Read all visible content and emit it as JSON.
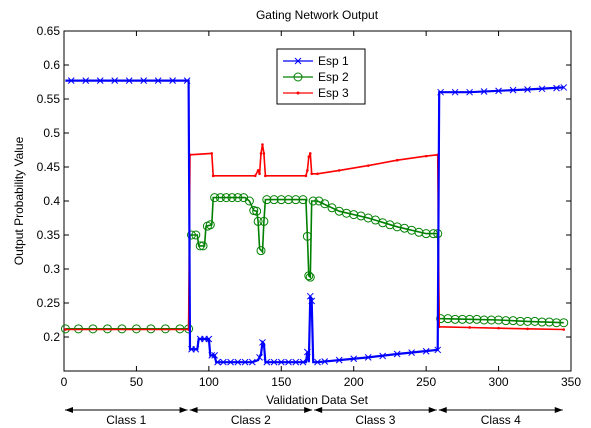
{
  "chart_data": {
    "type": "line",
    "title": "Gating Network Output",
    "xlabel": "Validation Data Set",
    "ylabel": "Output Probability Value",
    "xlim": [
      0,
      350
    ],
    "ylim": [
      0.15,
      0.65
    ],
    "xticks": [
      0,
      50,
      100,
      150,
      200,
      250,
      300,
      350
    ],
    "yticks": [
      0.2,
      0.25,
      0.3,
      0.35,
      0.4,
      0.45,
      0.5,
      0.55,
      0.6,
      0.65
    ],
    "ytick_labels": [
      "0.2",
      "0.25",
      "0.3",
      "0.35",
      "0.4",
      "0.45",
      "0.5",
      "0.55",
      "0.6",
      "0.65"
    ],
    "grid": false,
    "legend_position": "top-center",
    "series": [
      {
        "name": "Esp 1",
        "color": "#0000ff",
        "marker": "x",
        "points": [
          [
            1,
            0.577
          ],
          [
            86,
            0.577
          ],
          [
            87,
            0.182
          ],
          [
            92,
            0.182
          ],
          [
            93,
            0.197
          ],
          [
            100,
            0.197
          ],
          [
            101,
            0.173
          ],
          [
            104,
            0.173
          ],
          [
            105,
            0.163
          ],
          [
            130,
            0.163
          ],
          [
            134,
            0.166
          ],
          [
            136,
            0.175
          ],
          [
            137,
            0.192
          ],
          [
            138,
            0.19
          ],
          [
            139,
            0.163
          ],
          [
            167,
            0.163
          ],
          [
            168,
            0.178
          ],
          [
            169,
            0.163
          ],
          [
            170,
            0.26
          ],
          [
            171,
            0.253
          ],
          [
            172,
            0.163
          ],
          [
            175,
            0.163
          ],
          [
            190,
            0.166
          ],
          [
            210,
            0.17
          ],
          [
            230,
            0.175
          ],
          [
            258,
            0.181
          ],
          [
            259,
            0.56
          ],
          [
            280,
            0.56
          ],
          [
            300,
            0.562
          ],
          [
            320,
            0.564
          ],
          [
            345,
            0.567
          ]
        ],
        "marker_points": [
          [
            5,
            0.577
          ],
          [
            15,
            0.577
          ],
          [
            25,
            0.577
          ],
          [
            35,
            0.577
          ],
          [
            45,
            0.577
          ],
          [
            55,
            0.577
          ],
          [
            65,
            0.577
          ],
          [
            75,
            0.577
          ],
          [
            85,
            0.577
          ],
          [
            88,
            0.182
          ],
          [
            91,
            0.182
          ],
          [
            94,
            0.197
          ],
          [
            97,
            0.197
          ],
          [
            100,
            0.197
          ],
          [
            102,
            0.173
          ],
          [
            104,
            0.173
          ],
          [
            106,
            0.163
          ],
          [
            110,
            0.163
          ],
          [
            115,
            0.163
          ],
          [
            120,
            0.163
          ],
          [
            125,
            0.163
          ],
          [
            130,
            0.163
          ],
          [
            135,
            0.17
          ],
          [
            137,
            0.192
          ],
          [
            140,
            0.163
          ],
          [
            145,
            0.163
          ],
          [
            150,
            0.163
          ],
          [
            155,
            0.163
          ],
          [
            160,
            0.163
          ],
          [
            165,
            0.163
          ],
          [
            168,
            0.178
          ],
          [
            170,
            0.26
          ],
          [
            171,
            0.253
          ],
          [
            175,
            0.163
          ],
          [
            180,
            0.164
          ],
          [
            190,
            0.166
          ],
          [
            200,
            0.168
          ],
          [
            210,
            0.17
          ],
          [
            220,
            0.172
          ],
          [
            230,
            0.175
          ],
          [
            240,
            0.177
          ],
          [
            250,
            0.179
          ],
          [
            258,
            0.181
          ],
          [
            260,
            0.56
          ],
          [
            270,
            0.56
          ],
          [
            280,
            0.56
          ],
          [
            290,
            0.561
          ],
          [
            300,
            0.562
          ],
          [
            310,
            0.563
          ],
          [
            320,
            0.564
          ],
          [
            330,
            0.565
          ],
          [
            340,
            0.566
          ],
          [
            345,
            0.567
          ]
        ]
      },
      {
        "name": "Esp 2",
        "color": "#008000",
        "marker": "o",
        "points": [
          [
            1,
            0.212
          ],
          [
            86,
            0.212
          ],
          [
            87,
            0.35
          ],
          [
            92,
            0.35
          ],
          [
            93,
            0.334
          ],
          [
            97,
            0.334
          ],
          [
            98,
            0.363
          ],
          [
            102,
            0.365
          ],
          [
            103,
            0.405
          ],
          [
            125,
            0.405
          ],
          [
            128,
            0.4
          ],
          [
            131,
            0.386
          ],
          [
            133,
            0.385
          ],
          [
            134,
            0.37
          ],
          [
            135,
            0.33
          ],
          [
            137,
            0.325
          ],
          [
            138,
            0.37
          ],
          [
            139,
            0.402
          ],
          [
            167,
            0.402
          ],
          [
            168,
            0.348
          ],
          [
            169,
            0.29
          ],
          [
            170,
            0.288
          ],
          [
            171,
            0.4
          ],
          [
            175,
            0.4
          ],
          [
            190,
            0.385
          ],
          [
            210,
            0.375
          ],
          [
            230,
            0.362
          ],
          [
            250,
            0.352
          ],
          [
            258,
            0.352
          ],
          [
            259,
            0.227
          ],
          [
            280,
            0.226
          ],
          [
            300,
            0.225
          ],
          [
            320,
            0.223
          ],
          [
            345,
            0.221
          ]
        ],
        "marker_points": [
          [
            1,
            0.212
          ],
          [
            10,
            0.212
          ],
          [
            20,
            0.212
          ],
          [
            30,
            0.212
          ],
          [
            40,
            0.212
          ],
          [
            50,
            0.212
          ],
          [
            60,
            0.212
          ],
          [
            70,
            0.212
          ],
          [
            80,
            0.212
          ],
          [
            86,
            0.212
          ],
          [
            88,
            0.35
          ],
          [
            91,
            0.35
          ],
          [
            94,
            0.334
          ],
          [
            96,
            0.334
          ],
          [
            99,
            0.363
          ],
          [
            101,
            0.365
          ],
          [
            104,
            0.405
          ],
          [
            108,
            0.405
          ],
          [
            112,
            0.405
          ],
          [
            116,
            0.405
          ],
          [
            120,
            0.405
          ],
          [
            124,
            0.405
          ],
          [
            128,
            0.4
          ],
          [
            131,
            0.386
          ],
          [
            133,
            0.385
          ],
          [
            134,
            0.37
          ],
          [
            136,
            0.327
          ],
          [
            138,
            0.37
          ],
          [
            140,
            0.402
          ],
          [
            145,
            0.402
          ],
          [
            150,
            0.402
          ],
          [
            155,
            0.402
          ],
          [
            160,
            0.402
          ],
          [
            165,
            0.402
          ],
          [
            168,
            0.348
          ],
          [
            169,
            0.29
          ],
          [
            170,
            0.288
          ],
          [
            172,
            0.4
          ],
          [
            176,
            0.4
          ],
          [
            180,
            0.396
          ],
          [
            185,
            0.39
          ],
          [
            190,
            0.385
          ],
          [
            195,
            0.382
          ],
          [
            200,
            0.38
          ],
          [
            205,
            0.378
          ],
          [
            210,
            0.375
          ],
          [
            215,
            0.372
          ],
          [
            220,
            0.368
          ],
          [
            225,
            0.365
          ],
          [
            230,
            0.362
          ],
          [
            235,
            0.36
          ],
          [
            240,
            0.357
          ],
          [
            245,
            0.354
          ],
          [
            250,
            0.352
          ],
          [
            255,
            0.352
          ],
          [
            258,
            0.352
          ],
          [
            260,
            0.227
          ],
          [
            265,
            0.227
          ],
          [
            270,
            0.226
          ],
          [
            275,
            0.226
          ],
          [
            280,
            0.226
          ],
          [
            285,
            0.226
          ],
          [
            290,
            0.225
          ],
          [
            295,
            0.225
          ],
          [
            300,
            0.225
          ],
          [
            305,
            0.224
          ],
          [
            310,
            0.224
          ],
          [
            315,
            0.223
          ],
          [
            320,
            0.223
          ],
          [
            325,
            0.223
          ],
          [
            330,
            0.222
          ],
          [
            335,
            0.222
          ],
          [
            340,
            0.221
          ],
          [
            345,
            0.221
          ]
        ]
      },
      {
        "name": "Esp 3",
        "color": "#ff0000",
        "marker": ".",
        "points": [
          [
            1,
            0.211
          ],
          [
            86,
            0.211
          ],
          [
            87,
            0.468
          ],
          [
            102,
            0.47
          ],
          [
            103,
            0.437
          ],
          [
            132,
            0.437
          ],
          [
            134,
            0.445
          ],
          [
            135,
            0.44
          ],
          [
            136,
            0.47
          ],
          [
            137,
            0.483
          ],
          [
            138,
            0.47
          ],
          [
            139,
            0.437
          ],
          [
            167,
            0.437
          ],
          [
            168,
            0.445
          ],
          [
            169,
            0.465
          ],
          [
            170,
            0.47
          ],
          [
            171,
            0.44
          ],
          [
            175,
            0.44
          ],
          [
            190,
            0.445
          ],
          [
            210,
            0.452
          ],
          [
            230,
            0.46
          ],
          [
            250,
            0.466
          ],
          [
            258,
            0.468
          ],
          [
            259,
            0.215
          ],
          [
            280,
            0.214
          ],
          [
            300,
            0.213
          ],
          [
            320,
            0.212
          ],
          [
            345,
            0.211
          ]
        ],
        "marker_points": []
      }
    ],
    "class_annotations": [
      {
        "label": "Class 1",
        "from": 0,
        "to": 86
      },
      {
        "label": "Class 2",
        "from": 86,
        "to": 172
      },
      {
        "label": "Class 3",
        "from": 172,
        "to": 258
      },
      {
        "label": "Class 4",
        "from": 258,
        "to": 345
      }
    ]
  }
}
